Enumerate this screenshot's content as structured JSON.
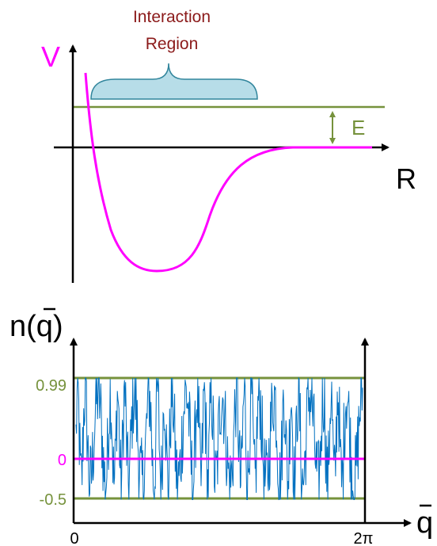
{
  "top_panel": {
    "y_axis_label": "V",
    "x_axis_label": "R",
    "energy_label": "E",
    "region_label_line1": "Interaction",
    "region_label_line2": "Region",
    "colors": {
      "axis": "#000000",
      "potential": "#ff00ff",
      "energy_level": "#76923c",
      "region_text": "#8b1a1a",
      "brace_fill": "#b7dde8",
      "brace_stroke": "#31859c"
    }
  },
  "bottom_panel": {
    "y_axis_label_main": "n(",
    "y_axis_label_var": "q",
    "y_axis_label_close": ")",
    "x_axis_label": "q",
    "x_tick_start": "0",
    "x_tick_end": "2π",
    "y_tick_upper": "0.99",
    "y_tick_zero": "0",
    "y_tick_lower": "-0.5",
    "x_range": [
      0,
      6.283
    ],
    "upper_level": 0.99,
    "lower_level": -0.5,
    "colors": {
      "axis": "#000000",
      "signal": "#0070c0",
      "zero_line": "#ff00ff",
      "bound_lines": "#76923c",
      "tick_green": "#76923c",
      "tick_zero": "#ff00ff",
      "tick_black": "#000000"
    }
  }
}
